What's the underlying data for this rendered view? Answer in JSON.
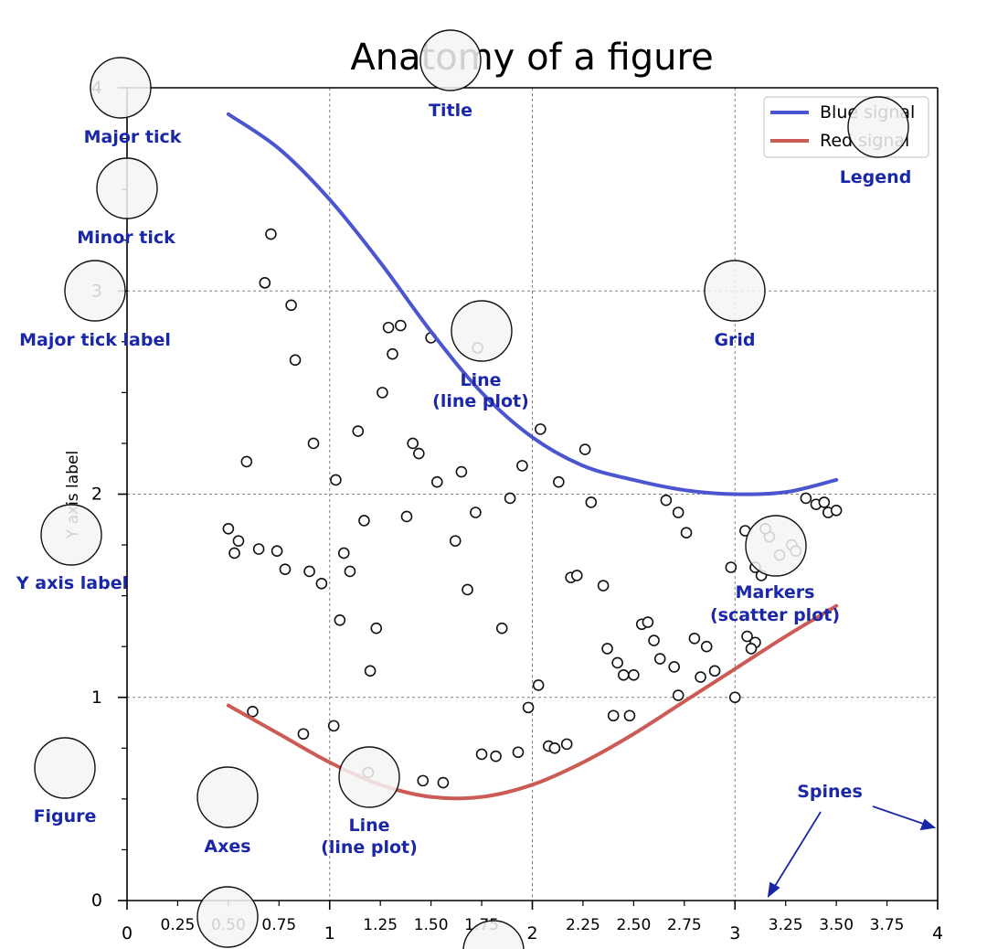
{
  "chart_data": {
    "type": "line",
    "title": "Anatomy of a figure",
    "xlabel": "",
    "ylabel": "Y axis label",
    "xlim": [
      0,
      4
    ],
    "ylim": [
      0,
      4
    ],
    "grid": true,
    "legend_position": "top-right",
    "x_major_ticks": [
      0,
      1,
      2,
      3,
      4
    ],
    "x_minor_ticks": [
      0.25,
      0.5,
      0.75,
      1.25,
      1.5,
      1.75,
      2.25,
      2.5,
      2.75,
      3.25,
      3.5,
      3.75
    ],
    "x_tick_labels": [
      "0",
      "0.25",
      "0.50",
      "0.75",
      "1",
      "1.25",
      "1.50",
      "1.75",
      "2",
      "2.25",
      "2.50",
      "2.75",
      "3",
      "3.25",
      "3.50",
      "3.75",
      "4"
    ],
    "y_major_ticks": [
      0,
      1,
      2,
      3,
      4
    ],
    "y_tick_labels": [
      "0",
      "1",
      "2",
      "3",
      "4"
    ],
    "series": [
      {
        "name": "Blue signal",
        "color": "#4b55d0",
        "x": [
          0.5,
          0.75,
          1.0,
          1.25,
          1.5,
          1.75,
          2.0,
          2.25,
          2.5,
          2.75,
          3.0,
          3.25,
          3.5
        ],
        "y": [
          3.87,
          3.7,
          3.45,
          3.14,
          2.8,
          2.5,
          2.28,
          2.14,
          2.07,
          2.02,
          2.0,
          2.01,
          2.07
        ]
      },
      {
        "name": "Red signal",
        "color": "#cc5a55",
        "x": [
          0.5,
          0.75,
          1.0,
          1.25,
          1.5,
          1.75,
          2.0,
          2.25,
          2.5,
          2.75,
          3.0,
          3.25,
          3.5
        ],
        "y": [
          0.96,
          0.82,
          0.68,
          0.57,
          0.51,
          0.51,
          0.57,
          0.68,
          0.82,
          0.98,
          1.14,
          1.3,
          1.45
        ]
      },
      {
        "name": "",
        "type": "scatter",
        "marker": "circle-open",
        "x": [
          0.71,
          0.68,
          0.81,
          0.83,
          1.29,
          1.35,
          1.5,
          1.73,
          1.31,
          1.26,
          0.59,
          0.92,
          1.14,
          1.41,
          1.44,
          1.03,
          1.38,
          1.53,
          1.65,
          1.72,
          1.89,
          1.95,
          2.04,
          2.13,
          2.26,
          2.29,
          0.5,
          0.55,
          0.53,
          0.65,
          0.74,
          0.78,
          0.9,
          0.96,
          1.07,
          1.1,
          1.17,
          1.05,
          1.2,
          1.23,
          1.62,
          1.68,
          1.85,
          2.19,
          2.22,
          2.35,
          2.42,
          2.45,
          2.5,
          2.54,
          2.57,
          2.6,
          2.66,
          2.72,
          2.76,
          2.83,
          2.86,
          2.98,
          3.05,
          3.1,
          3.17,
          3.22,
          3.28,
          3.3,
          3.35,
          3.4,
          3.44,
          3.46,
          3.5,
          3.15,
          3.1,
          3.06,
          2.37,
          2.4,
          2.63,
          2.7,
          2.8,
          2.9,
          3.0,
          3.08,
          3.13,
          0.62,
          0.87,
          1.02,
          1.19,
          1.46,
          1.56,
          1.75,
          1.82,
          1.93,
          1.98,
          2.03,
          2.08,
          2.11,
          2.17,
          2.48,
          2.72
        ],
        "y": [
          3.28,
          3.04,
          2.93,
          2.66,
          2.82,
          2.83,
          2.77,
          2.72,
          2.69,
          2.5,
          2.16,
          2.25,
          2.31,
          2.25,
          2.2,
          2.07,
          1.89,
          2.06,
          2.11,
          1.91,
          1.98,
          2.14,
          2.32,
          2.06,
          2.22,
          1.96,
          1.83,
          1.77,
          1.71,
          1.73,
          1.72,
          1.63,
          1.62,
          1.56,
          1.71,
          1.62,
          1.87,
          1.38,
          1.13,
          1.34,
          1.77,
          1.53,
          1.34,
          1.59,
          1.6,
          1.55,
          1.17,
          1.11,
          1.11,
          1.36,
          1.37,
          1.28,
          1.97,
          1.91,
          1.81,
          1.1,
          1.25,
          1.64,
          1.82,
          1.64,
          1.79,
          1.7,
          1.75,
          1.72,
          1.98,
          1.95,
          1.96,
          1.91,
          1.92,
          1.83,
          1.27,
          1.3,
          1.24,
          0.91,
          1.19,
          1.15,
          1.29,
          1.13,
          1.0,
          1.24,
          1.6,
          0.93,
          0.82,
          0.86,
          0.63,
          0.59,
          0.58,
          0.72,
          0.71,
          0.73,
          0.95,
          1.06,
          0.76,
          0.75,
          0.77,
          0.91,
          1.01
        ]
      }
    ],
    "annotations": [
      {
        "text": "Title"
      },
      {
        "text": "Major tick"
      },
      {
        "text": "Minor tick"
      },
      {
        "text": "Major tick label"
      },
      {
        "text": "Y axis label"
      },
      {
        "text": "Figure"
      },
      {
        "text": "Axes"
      },
      {
        "text": "Line",
        "line2": "(line plot)",
        "id": "line-upper"
      },
      {
        "text": "Line",
        "line2": "(line plot)",
        "id": "line-lower"
      },
      {
        "text": "Grid"
      },
      {
        "text": "Legend"
      },
      {
        "text": "Markers",
        "line2": "(scatter plot)"
      },
      {
        "text": "Spines"
      }
    ]
  },
  "colors": {
    "annotation": "#1a27a8",
    "grid": "#7f7f7f",
    "highlight_circle_fill": "#f4f4f4"
  }
}
